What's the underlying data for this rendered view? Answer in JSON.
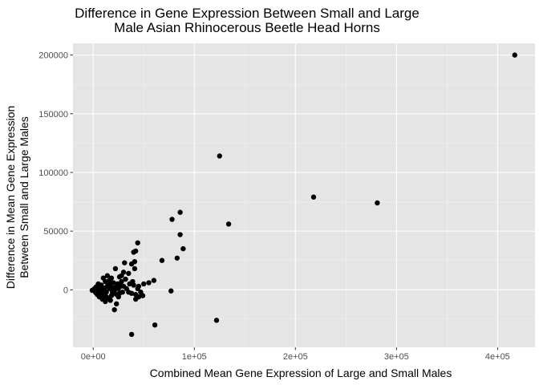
{
  "chart_data": {
    "type": "scatter",
    "title_lines": [
      "Difference in Gene Expression Between Small and Large",
      "Male Asian Rhinocerous Beetle Head Horns"
    ],
    "xlabel": "Combined Mean Gene Expression of Large and Small Males",
    "ylabel_lines": [
      "Difference in Mean Gene Expression",
      "Between Small and Large Males"
    ],
    "xlim": [
      -20000,
      437000
    ],
    "ylim": [
      -49000,
      210000
    ],
    "x_ticks": [
      {
        "value": 0,
        "label": "0e+00"
      },
      {
        "value": 100000,
        "label": "1e+05"
      },
      {
        "value": 200000,
        "label": "2e+05"
      },
      {
        "value": 300000,
        "label": "3e+05"
      },
      {
        "value": 400000,
        "label": "4e+05"
      }
    ],
    "y_ticks": [
      {
        "value": 0,
        "label": "0"
      },
      {
        "value": 50000,
        "label": "50000"
      },
      {
        "value": 100000,
        "label": "100000"
      },
      {
        "value": 150000,
        "label": "150000"
      },
      {
        "value": 200000,
        "label": "200000"
      }
    ],
    "grid": true,
    "legend": "none",
    "colors": {
      "panel": "#e5e5e5",
      "grid_major": "#ffffff",
      "grid_minor": "#f2f2f2",
      "point": "#000000",
      "tick": "#333333"
    },
    "points": [
      [
        417000,
        200000
      ],
      [
        125000,
        114000
      ],
      [
        218000,
        79000
      ],
      [
        281000,
        74000
      ],
      [
        86000,
        66000
      ],
      [
        78000,
        60000
      ],
      [
        134000,
        56000
      ],
      [
        86000,
        47000
      ],
      [
        44000,
        40000
      ],
      [
        89000,
        35000
      ],
      [
        42000,
        33000
      ],
      [
        40000,
        32000
      ],
      [
        83000,
        27000
      ],
      [
        68000,
        25000
      ],
      [
        41000,
        24000
      ],
      [
        31000,
        23000
      ],
      [
        38000,
        22000
      ],
      [
        41000,
        18000
      ],
      [
        22000,
        18000
      ],
      [
        18000,
        10000
      ],
      [
        14000,
        12000
      ],
      [
        35000,
        14000
      ],
      [
        32000,
        9000
      ],
      [
        28000,
        7000
      ],
      [
        26000,
        11000
      ],
      [
        60000,
        8000
      ],
      [
        55000,
        6000
      ],
      [
        50000,
        5000
      ],
      [
        45000,
        3000
      ],
      [
        40000,
        4000
      ],
      [
        30000,
        3000
      ],
      [
        24000,
        5000
      ],
      [
        20000,
        6000
      ],
      [
        16000,
        8000
      ],
      [
        12000,
        7000
      ],
      [
        10000,
        10000
      ],
      [
        8000,
        4000
      ],
      [
        6000,
        2000
      ],
      [
        4000,
        1000
      ],
      [
        2000,
        0
      ],
      [
        1000,
        500
      ],
      [
        0,
        0
      ],
      [
        -1000,
        -500
      ],
      [
        3000,
        -1500
      ],
      [
        5000,
        -2000
      ],
      [
        7000,
        -3000
      ],
      [
        9000,
        -4000
      ],
      [
        11000,
        -5000
      ],
      [
        13000,
        -6000
      ],
      [
        15000,
        -7000
      ],
      [
        17000,
        -9000
      ],
      [
        19000,
        -2000
      ],
      [
        21000,
        -1000
      ],
      [
        23000,
        -4000
      ],
      [
        26000,
        -3000
      ],
      [
        29000,
        -2000
      ],
      [
        35000,
        -2000
      ],
      [
        38000,
        -3000
      ],
      [
        42000,
        -4000
      ],
      [
        45000,
        -6000
      ],
      [
        49000,
        -5000
      ],
      [
        42000,
        -8000
      ],
      [
        23000,
        -12000
      ],
      [
        21000,
        -17000
      ],
      [
        77000,
        -1000
      ],
      [
        122000,
        -26000
      ],
      [
        61000,
        -30000
      ],
      [
        38000,
        -38000
      ],
      [
        12000,
        -10000
      ],
      [
        9000,
        -8000
      ],
      [
        6000,
        -6000
      ],
      [
        4000,
        -4000
      ],
      [
        14000,
        3000
      ],
      [
        16000,
        1000
      ],
      [
        18000,
        2000
      ],
      [
        11000,
        1500
      ],
      [
        7000,
        3000
      ],
      [
        5000,
        5000
      ],
      [
        3000,
        2500
      ],
      [
        2000,
        1500
      ],
      [
        1500,
        -1000
      ],
      [
        2500,
        -2500
      ],
      [
        8000,
        1000
      ],
      [
        10000,
        -1000
      ],
      [
        13000,
        -2000
      ],
      [
        15000,
        4000
      ],
      [
        17000,
        5000
      ],
      [
        20000,
        -3000
      ],
      [
        22000,
        2000
      ],
      [
        25000,
        1000
      ],
      [
        27000,
        3000
      ],
      [
        33000,
        1000
      ],
      [
        36000,
        5000
      ],
      [
        39000,
        7000
      ],
      [
        44000,
        1000
      ],
      [
        47000,
        -2000
      ],
      [
        28000,
        12000
      ],
      [
        30000,
        15000
      ],
      [
        25000,
        -6000
      ],
      [
        18000,
        -5000
      ]
    ]
  }
}
